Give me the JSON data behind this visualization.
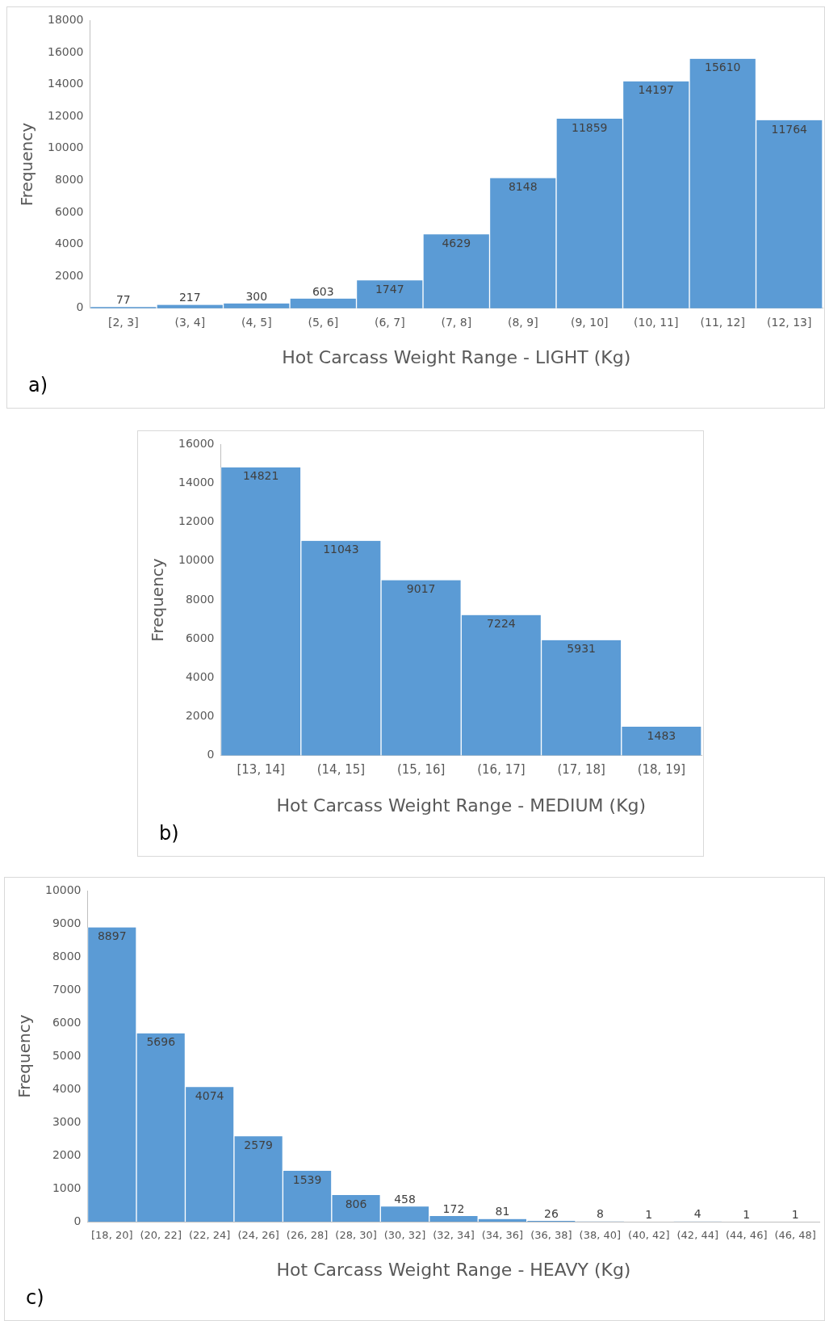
{
  "chart_data": [
    {
      "type": "bar",
      "categories": [
        "[2, 3]",
        "(3, 4]",
        "(4, 5]",
        "(5, 6]",
        "(6, 7]",
        "(7, 8]",
        "(8, 9]",
        "(9, 10]",
        "(10, 11]",
        "(11, 12]",
        "(12, 13]"
      ],
      "values": [
        77,
        217,
        300,
        603,
        1747,
        4629,
        8148,
        11859,
        14197,
        15610,
        11764
      ],
      "color": "#5b9bd5",
      "ylim": [
        0,
        18000
      ],
      "yticks": [
        0,
        2000,
        4000,
        6000,
        8000,
        10000,
        12000,
        14000,
        16000,
        18000
      ],
      "xlabel": "Hot Carcass Weight Range - LIGHT (Kg)",
      "ylabel": "Frequency",
      "data_labels": true,
      "annotations": [
        "a)"
      ]
    },
    {
      "type": "bar",
      "categories": [
        "[13, 14]",
        "(14, 15]",
        "(15, 16]",
        "(16, 17]",
        "(17, 18]",
        "(18, 19]"
      ],
      "values": [
        14821,
        11043,
        9017,
        7224,
        5931,
        1483
      ],
      "color": "#5b9bd5",
      "ylim": [
        0,
        16000
      ],
      "yticks": [
        0,
        2000,
        4000,
        6000,
        8000,
        10000,
        12000,
        14000,
        16000
      ],
      "xlabel": "Hot Carcass Weight Range - MEDIUM (Kg)",
      "ylabel": "Frequency",
      "data_labels": true,
      "annotations": [
        "b)"
      ]
    },
    {
      "type": "bar",
      "categories": [
        "[18, 20]",
        "(20, 22]",
        "(22, 24]",
        "(24, 26]",
        "(26, 28]",
        "(28, 30]",
        "(30, 32]",
        "(32, 34]",
        "(34, 36]",
        "(36, 38]",
        "(38, 40]",
        "(40, 42]",
        "(42, 44]",
        "(44, 46]",
        "(46, 48]"
      ],
      "values": [
        8897,
        5696,
        4074,
        2579,
        1539,
        806,
        458,
        172,
        81,
        26,
        8,
        1,
        4,
        1,
        1
      ],
      "color": "#5b9bd5",
      "ylim": [
        0,
        10000
      ],
      "yticks": [
        0,
        1000,
        2000,
        3000,
        4000,
        5000,
        6000,
        7000,
        8000,
        9000,
        10000
      ],
      "xlabel": "Hot Carcass Weight Range - HEAVY (Kg)",
      "ylabel": "Frequency",
      "data_labels": true,
      "annotations": [
        "c)"
      ]
    }
  ]
}
